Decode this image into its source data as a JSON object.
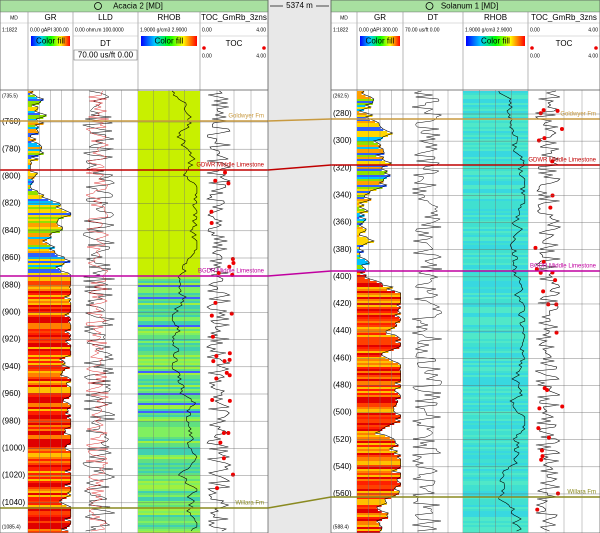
{
  "spacing": "5374 m",
  "wells": [
    {
      "title": "Acacia 2 [MD]",
      "md": "MD",
      "scale": "1:1822",
      "tracks": [
        {
          "name": "GR",
          "range": "0.00 gAPI 300.00",
          "fill": "Color fill"
        },
        {
          "name": "LLD",
          "range": "0.00 ohm.m 100.0000",
          "name2": "DT",
          "range2": "70.00 us/ft 0.00"
        },
        {
          "name": "RHOB",
          "range": "1.9000 g/cm3 2.9000",
          "fill": "Color fill"
        },
        {
          "name": "TOC_GmRb_3zns",
          "min": "0.00",
          "max": "4.00",
          "name2": "TOC",
          "min2": "0.00",
          "max2": "4.00"
        }
      ],
      "depths": [
        "(735.5)",
        "(760)",
        "(780)",
        "(800)",
        "(820)",
        "(840)",
        "(860)",
        "(880)",
        "(900)",
        "(920)",
        "(940)",
        "(960)",
        "(980)",
        "(1000)",
        "(1020)",
        "(1040)",
        "(1085.4)"
      ],
      "tops": [
        "Goldwyer Fm",
        "GDWR Middle Limestone",
        "BGDR Middle Limestone",
        "Willara Fm"
      ]
    },
    {
      "title": "Solanum 1 [MD]",
      "md": "MD",
      "scale": "1:1822",
      "tracks": [
        {
          "name": "GR",
          "range": "0.00 gAPI 300.00",
          "fill": "Color fill"
        },
        {
          "name": "DT",
          "range": "70.00 us/ft 0.00"
        },
        {
          "name": "RHOB",
          "range": "1.9000 g/cm3 2.9000",
          "fill": "Color fill"
        },
        {
          "name": "TOC_GmRb_3zns",
          "min": "0.00",
          "max": "4.00",
          "name2": "TOC",
          "min2": "0.00",
          "max2": "4.00"
        }
      ],
      "depths": [
        "(262.5)",
        "(280)",
        "(300)",
        "(320)",
        "(340)",
        "(360)",
        "(380)",
        "(400)",
        "(420)",
        "(440)",
        "(460)",
        "(480)",
        "(500)",
        "(520)",
        "(540)",
        "(560)",
        "(588.4)"
      ],
      "tops": [
        "Goldwyer Fm",
        "GDWR Middle Limestone",
        "BGDR Middle Limestone",
        "Willara Fm"
      ]
    }
  ]
}
